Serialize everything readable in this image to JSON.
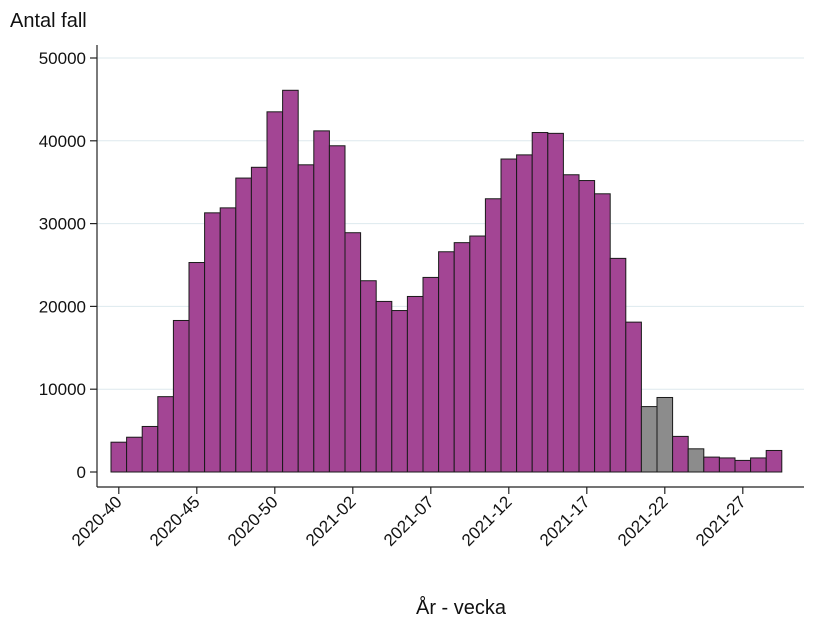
{
  "chart_data": {
    "type": "bar",
    "ylabel": "Antal fall",
    "xlabel": "År - vecka",
    "ylim": [
      0,
      50000
    ],
    "yticks": [
      0,
      10000,
      20000,
      30000,
      40000,
      50000
    ],
    "xtick_labels": [
      "2020-40",
      "2020-45",
      "2020-50",
      "2021-02",
      "2021-07",
      "2021-12",
      "2021-17",
      "2021-22",
      "2021-27"
    ],
    "grid": "horizontal",
    "colors": {
      "main": "#a34594",
      "secondary": "#8c8c8c",
      "edge": "#1a1a1a",
      "grid": "#dde9ee"
    },
    "categories": [
      "2020-40",
      "2020-41",
      "2020-42",
      "2020-43",
      "2020-44",
      "2020-45",
      "2020-46",
      "2020-47",
      "2020-48",
      "2020-49",
      "2020-50",
      "2020-51",
      "2020-52",
      "2020-53",
      "2021-01",
      "2021-02",
      "2021-03",
      "2021-04",
      "2021-05",
      "2021-06",
      "2021-07",
      "2021-08",
      "2021-09",
      "2021-10",
      "2021-11",
      "2021-12",
      "2021-13",
      "2021-14",
      "2021-15",
      "2021-16",
      "2021-17",
      "2021-18",
      "2021-19",
      "2021-20",
      "2021-21",
      "2021-22",
      "2021-23",
      "2021-24",
      "2021-25",
      "2021-26",
      "2021-27",
      "2021-28",
      "2021-29"
    ],
    "values": [
      3600,
      4200,
      5500,
      9100,
      18300,
      25300,
      31300,
      31900,
      35500,
      36800,
      43500,
      46100,
      37100,
      41200,
      39400,
      28900,
      23100,
      20600,
      19500,
      21200,
      23500,
      26600,
      27700,
      28500,
      33000,
      37800,
      38300,
      41000,
      40900,
      35900,
      35200,
      33600,
      25800,
      18100,
      7900,
      9000,
      4300,
      2800,
      1800,
      1700,
      1400,
      1700,
      2600
    ],
    "bar_colors": [
      "main",
      "main",
      "main",
      "main",
      "main",
      "main",
      "main",
      "main",
      "main",
      "main",
      "main",
      "main",
      "main",
      "main",
      "main",
      "main",
      "main",
      "main",
      "main",
      "main",
      "main",
      "main",
      "main",
      "main",
      "main",
      "main",
      "main",
      "main",
      "main",
      "main",
      "main",
      "main",
      "main",
      "main",
      "secondary",
      "secondary",
      "main",
      "secondary",
      "main",
      "main",
      "main",
      "main",
      "main"
    ]
  }
}
